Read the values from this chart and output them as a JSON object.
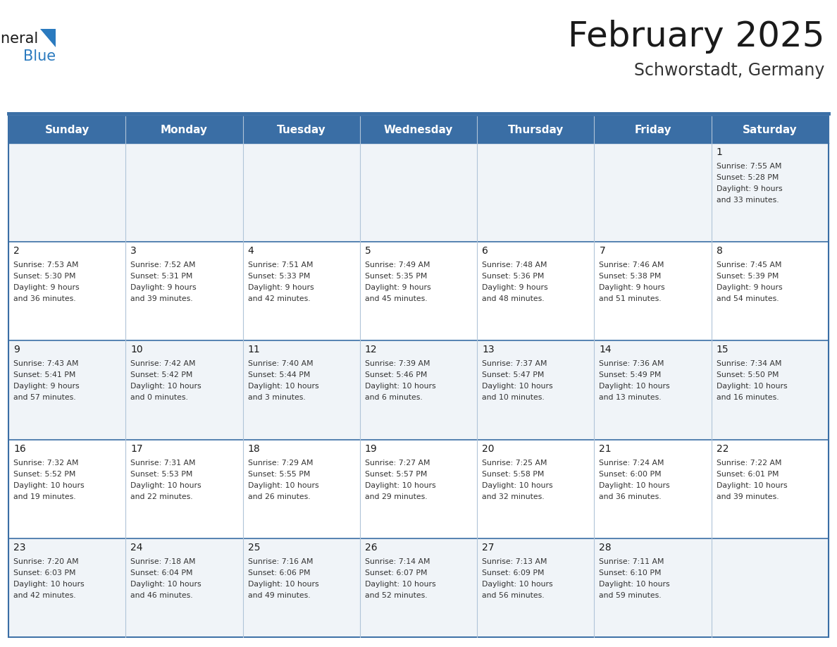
{
  "title": "February 2025",
  "subtitle": "Schworstadt, Germany",
  "header_bg_color": "#3a6ea5",
  "header_text_color": "#ffffff",
  "day_names": [
    "Sunday",
    "Monday",
    "Tuesday",
    "Wednesday",
    "Thursday",
    "Friday",
    "Saturday"
  ],
  "row0_bg": "#f0f4f8",
  "row1_bg": "#ffffff",
  "row2_bg": "#f0f4f8",
  "row3_bg": "#ffffff",
  "row4_bg": "#f0f4f8",
  "border_color": "#3a6ea5",
  "cell_border_color": "#b0c4d8",
  "title_color": "#1a1a1a",
  "subtitle_color": "#333333",
  "day_number_color": "#1a1a1a",
  "cell_text_color": "#333333",
  "logo_black": "#1a1a1a",
  "logo_blue": "#2a7abf",
  "weeks": [
    [
      null,
      null,
      null,
      null,
      null,
      null,
      {
        "day": 1,
        "sunrise": "7:55 AM",
        "sunset": "5:28 PM",
        "daylight": "9 hours and 33 minutes."
      }
    ],
    [
      {
        "day": 2,
        "sunrise": "7:53 AM",
        "sunset": "5:30 PM",
        "daylight": "9 hours and 36 minutes."
      },
      {
        "day": 3,
        "sunrise": "7:52 AM",
        "sunset": "5:31 PM",
        "daylight": "9 hours and 39 minutes."
      },
      {
        "day": 4,
        "sunrise": "7:51 AM",
        "sunset": "5:33 PM",
        "daylight": "9 hours and 42 minutes."
      },
      {
        "day": 5,
        "sunrise": "7:49 AM",
        "sunset": "5:35 PM",
        "daylight": "9 hours and 45 minutes."
      },
      {
        "day": 6,
        "sunrise": "7:48 AM",
        "sunset": "5:36 PM",
        "daylight": "9 hours and 48 minutes."
      },
      {
        "day": 7,
        "sunrise": "7:46 AM",
        "sunset": "5:38 PM",
        "daylight": "9 hours and 51 minutes."
      },
      {
        "day": 8,
        "sunrise": "7:45 AM",
        "sunset": "5:39 PM",
        "daylight": "9 hours and 54 minutes."
      }
    ],
    [
      {
        "day": 9,
        "sunrise": "7:43 AM",
        "sunset": "5:41 PM",
        "daylight": "9 hours and 57 minutes."
      },
      {
        "day": 10,
        "sunrise": "7:42 AM",
        "sunset": "5:42 PM",
        "daylight": "10 hours and 0 minutes."
      },
      {
        "day": 11,
        "sunrise": "7:40 AM",
        "sunset": "5:44 PM",
        "daylight": "10 hours and 3 minutes."
      },
      {
        "day": 12,
        "sunrise": "7:39 AM",
        "sunset": "5:46 PM",
        "daylight": "10 hours and 6 minutes."
      },
      {
        "day": 13,
        "sunrise": "7:37 AM",
        "sunset": "5:47 PM",
        "daylight": "10 hours and 10 minutes."
      },
      {
        "day": 14,
        "sunrise": "7:36 AM",
        "sunset": "5:49 PM",
        "daylight": "10 hours and 13 minutes."
      },
      {
        "day": 15,
        "sunrise": "7:34 AM",
        "sunset": "5:50 PM",
        "daylight": "10 hours and 16 minutes."
      }
    ],
    [
      {
        "day": 16,
        "sunrise": "7:32 AM",
        "sunset": "5:52 PM",
        "daylight": "10 hours and 19 minutes."
      },
      {
        "day": 17,
        "sunrise": "7:31 AM",
        "sunset": "5:53 PM",
        "daylight": "10 hours and 22 minutes."
      },
      {
        "day": 18,
        "sunrise": "7:29 AM",
        "sunset": "5:55 PM",
        "daylight": "10 hours and 26 minutes."
      },
      {
        "day": 19,
        "sunrise": "7:27 AM",
        "sunset": "5:57 PM",
        "daylight": "10 hours and 29 minutes."
      },
      {
        "day": 20,
        "sunrise": "7:25 AM",
        "sunset": "5:58 PM",
        "daylight": "10 hours and 32 minutes."
      },
      {
        "day": 21,
        "sunrise": "7:24 AM",
        "sunset": "6:00 PM",
        "daylight": "10 hours and 36 minutes."
      },
      {
        "day": 22,
        "sunrise": "7:22 AM",
        "sunset": "6:01 PM",
        "daylight": "10 hours and 39 minutes."
      }
    ],
    [
      {
        "day": 23,
        "sunrise": "7:20 AM",
        "sunset": "6:03 PM",
        "daylight": "10 hours and 42 minutes."
      },
      {
        "day": 24,
        "sunrise": "7:18 AM",
        "sunset": "6:04 PM",
        "daylight": "10 hours and 46 minutes."
      },
      {
        "day": 25,
        "sunrise": "7:16 AM",
        "sunset": "6:06 PM",
        "daylight": "10 hours and 49 minutes."
      },
      {
        "day": 26,
        "sunrise": "7:14 AM",
        "sunset": "6:07 PM",
        "daylight": "10 hours and 52 minutes."
      },
      {
        "day": 27,
        "sunrise": "7:13 AM",
        "sunset": "6:09 PM",
        "daylight": "10 hours and 56 minutes."
      },
      {
        "day": 28,
        "sunrise": "7:11 AM",
        "sunset": "6:10 PM",
        "daylight": "10 hours and 59 minutes."
      },
      null
    ]
  ]
}
